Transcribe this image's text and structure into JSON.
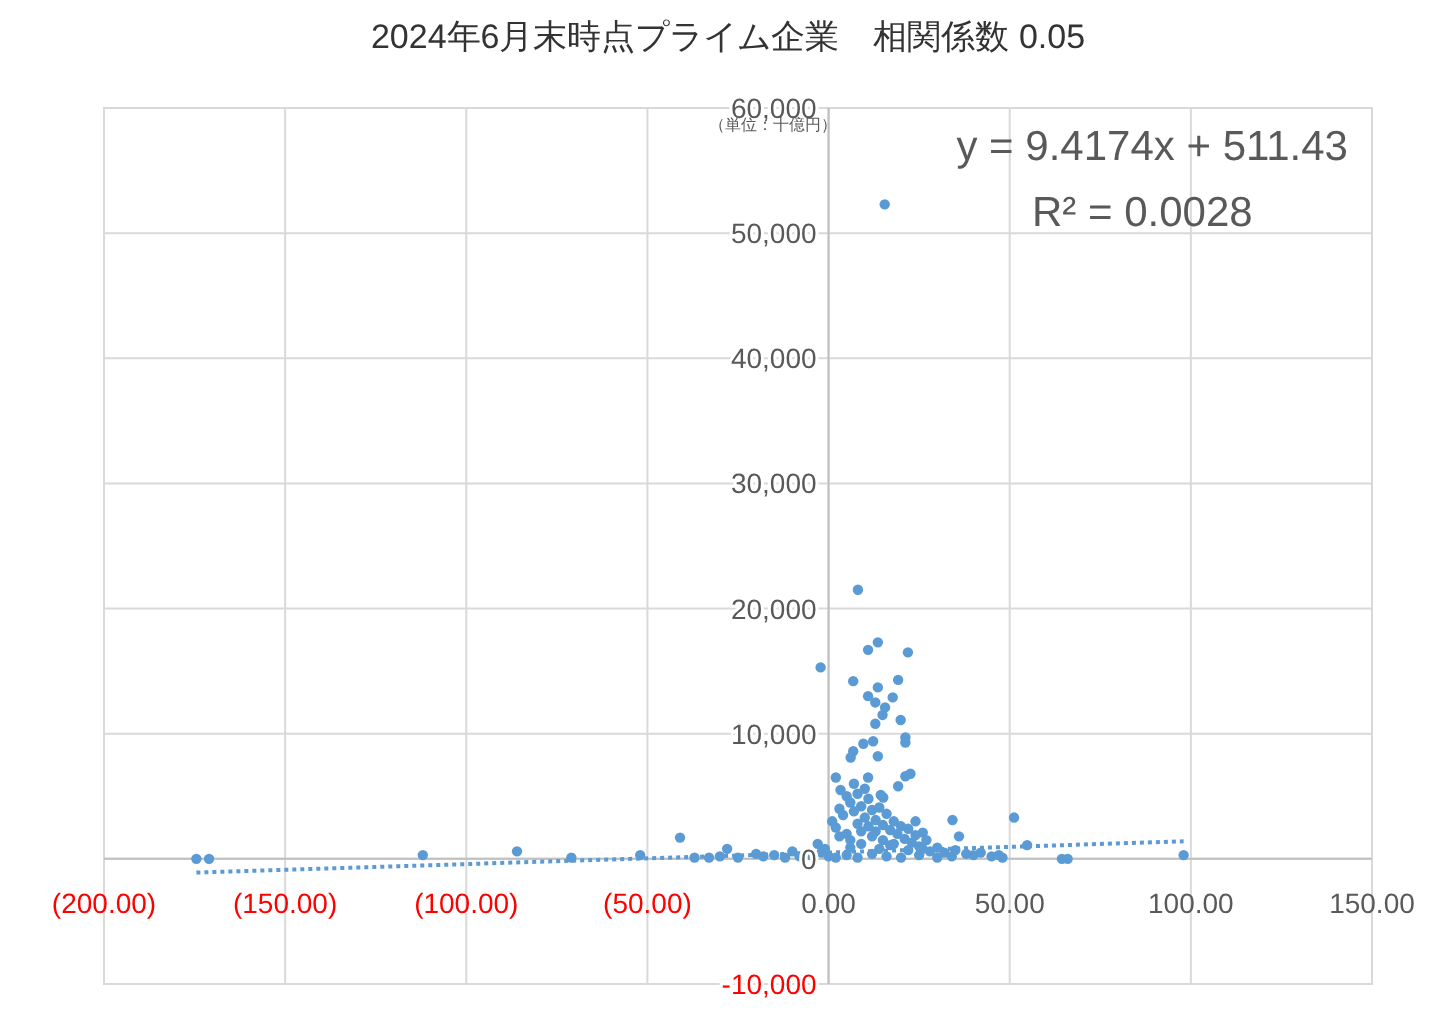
{
  "chart_data": {
    "type": "scatter",
    "title": "2024年6月末時点プライム企業　相関係数 0.05",
    "annotations": [
      "（単位：十億円）",
      "y = 9.4174x + 511.43",
      "R² = 0.0028"
    ],
    "xlim": [
      -200,
      150
    ],
    "ylim": [
      -10000,
      60000
    ],
    "xticks": [
      {
        "value": -200,
        "label": "(200.00)"
      },
      {
        "value": -150,
        "label": "(150.00)"
      },
      {
        "value": -100,
        "label": "(100.00)"
      },
      {
        "value": -50,
        "label": "(50.00)"
      },
      {
        "value": 0,
        "label": "0.00"
      },
      {
        "value": 50,
        "label": "50.00"
      },
      {
        "value": 100,
        "label": "100.00"
      },
      {
        "value": 150,
        "label": "150.00"
      }
    ],
    "yticks": [
      {
        "value": -10000,
        "label": "-10,000"
      },
      0,
      {
        "value": 10000,
        "label": "10,000"
      },
      {
        "value": 20000,
        "label": "20,000"
      },
      {
        "value": 30000,
        "label": "30,000"
      },
      {
        "value": 40000,
        "label": "40,000"
      },
      {
        "value": 50000,
        "label": "50,000"
      },
      {
        "value": 60000,
        "label": "60,000"
      }
    ],
    "grid": true,
    "series": [
      {
        "color": "#5b9bd5",
        "marker": "circle",
        "x": [
          -174.5,
          -171,
          -112,
          -86,
          -71,
          -52,
          -41,
          -37,
          15.5,
          8.1,
          -2.2,
          13.6,
          10.9,
          21.9,
          6.8,
          19.2,
          13.6,
          10.9,
          17.7,
          12.9,
          15.6,
          14.9,
          19.9,
          12.9,
          21.2,
          21.2,
          12.3,
          9.6,
          6.8,
          6.1,
          13.6,
          2.0,
          10.9,
          21.2,
          22.6,
          19.2,
          3.3,
          15.1,
          14.4,
          34.2,
          51.2,
          54.8,
          64.4,
          66,
          98,
          1,
          2,
          3,
          4,
          5,
          5,
          6,
          6,
          7,
          7,
          8,
          8,
          9,
          9,
          10,
          10,
          11,
          11,
          12,
          12,
          13,
          13,
          14,
          15,
          15,
          16,
          17,
          18,
          18,
          19,
          20,
          21,
          22,
          23,
          24,
          25,
          26,
          27,
          28,
          30,
          32,
          35,
          38,
          40,
          42,
          45,
          48,
          -1,
          -2,
          -3,
          -5,
          -8,
          -10,
          -12,
          -15,
          -18,
          -20,
          -25,
          -28,
          -30,
          -33,
          0,
          2,
          5,
          8,
          12,
          16,
          20,
          25,
          30,
          34,
          3,
          6,
          9,
          14,
          17,
          22,
          24,
          26,
          36,
          47
        ],
        "values": [
          0,
          0,
          300,
          600,
          100,
          300,
          1700,
          100,
          52300,
          21500,
          15300,
          17300,
          16700,
          16500,
          14200,
          14300,
          13700,
          13000,
          12900,
          12500,
          12100,
          11500,
          11100,
          10800,
          9700,
          9300,
          9400,
          9200,
          8600,
          8100,
          8200,
          6500,
          6500,
          6600,
          6800,
          5800,
          5500,
          4900,
          5100,
          3100,
          3300,
          1100,
          0,
          0,
          300,
          3000,
          2500,
          4000,
          3500,
          5000,
          2000,
          4500,
          1500,
          3800,
          6000,
          5200,
          2800,
          4200,
          1200,
          3300,
          5600,
          2600,
          4800,
          3900,
          1800,
          3100,
          2200,
          4100,
          2700,
          1500,
          3600,
          2300,
          3000,
          1200,
          2000,
          2600,
          1600,
          2400,
          1300,
          1900,
          1000,
          800,
          1500,
          600,
          900,
          500,
          700,
          400,
          300,
          500,
          200,
          100,
          800,
          500,
          1200,
          300,
          200,
          600,
          100,
          300,
          200,
          400,
          100,
          800,
          200,
          100,
          200,
          100,
          300,
          100,
          400,
          200,
          100,
          300,
          100,
          200,
          1800,
          900,
          2200,
          800,
          1100,
          700,
          3000,
          2100,
          1800,
          300
        ]
      },
      {
        "type": "line",
        "color": "#5b9bd5",
        "line_style": "dotted",
        "marker": "none",
        "x": [
          -174.5,
          98
        ],
        "values": [
          -1100,
          1400
        ]
      }
    ]
  }
}
